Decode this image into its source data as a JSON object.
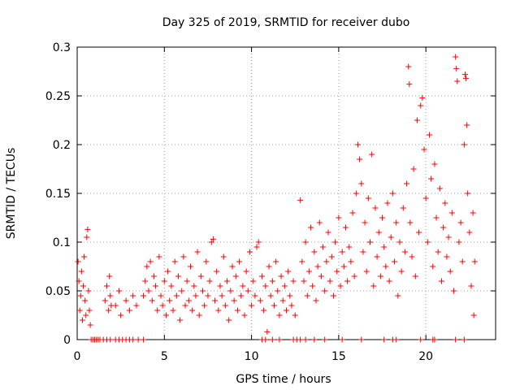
{
  "chart_data": {
    "type": "scatter",
    "title": "Day 325 of 2019, SRMTID for receiver dubo",
    "xlabel": "GPS time / hours",
    "ylabel": "SRMTID / TECUs",
    "xlim": [
      0,
      24
    ],
    "ylim": [
      0,
      0.3
    ],
    "xticks": [
      0,
      5,
      10,
      15,
      20
    ],
    "xtick_labels": [
      "0",
      "5",
      "10",
      "15",
      "20"
    ],
    "yticks": [
      0,
      0.05,
      0.1,
      0.15,
      0.2,
      0.25,
      0.3
    ],
    "ytick_labels": [
      "0",
      "0.05",
      "0.1",
      "0.15",
      "0.2",
      "0.25",
      "0.3"
    ],
    "grid": true,
    "marker": "+",
    "series": [
      {
        "name": "SRMTID",
        "color": "#ff0000",
        "points": [
          [
            0.05,
            0.08
          ],
          [
            0.1,
            0.06
          ],
          [
            0.15,
            0.03
          ],
          [
            0.2,
            0.045
          ],
          [
            0.25,
            0.07
          ],
          [
            0.3,
            0.02
          ],
          [
            0.35,
            0.055
          ],
          [
            0.4,
            0.085
          ],
          [
            0.45,
            0.04
          ],
          [
            0.5,
            0.025
          ],
          [
            0.55,
            0.105
          ],
          [
            0.6,
            0.113
          ],
          [
            0.65,
            0.05
          ],
          [
            0.7,
            0.03
          ],
          [
            0.75,
            0.015
          ],
          [
            0.8,
            0.0
          ],
          [
            0.9,
            0.0
          ],
          [
            1.0,
            0.0
          ],
          [
            1.1,
            0.0
          ],
          [
            1.2,
            0.0
          ],
          [
            1.3,
            0.0
          ],
          [
            1.5,
            0.0
          ],
          [
            1.7,
            0.0
          ],
          [
            1.9,
            0.0
          ],
          [
            1.6,
            0.04
          ],
          [
            1.7,
            0.055
          ],
          [
            1.8,
            0.03
          ],
          [
            1.85,
            0.065
          ],
          [
            1.9,
            0.045
          ],
          [
            1.95,
            0.035
          ],
          [
            2.2,
            0.0
          ],
          [
            2.4,
            0.0
          ],
          [
            2.6,
            0.0
          ],
          [
            2.8,
            0.0
          ],
          [
            3.0,
            0.0
          ],
          [
            3.2,
            0.0
          ],
          [
            3.5,
            0.0
          ],
          [
            3.8,
            0.0
          ],
          [
            2.2,
            0.035
          ],
          [
            2.4,
            0.05
          ],
          [
            2.5,
            0.025
          ],
          [
            2.8,
            0.04
          ],
          [
            3.0,
            0.03
          ],
          [
            3.2,
            0.045
          ],
          [
            3.4,
            0.035
          ],
          [
            3.8,
            0.045
          ],
          [
            3.9,
            0.06
          ],
          [
            4.0,
            0.075
          ],
          [
            4.1,
            0.05
          ],
          [
            4.2,
            0.08
          ],
          [
            4.3,
            0.04
          ],
          [
            4.4,
            0.065
          ],
          [
            4.5,
            0.055
          ],
          [
            4.6,
            0.03
          ],
          [
            4.7,
            0.085
          ],
          [
            4.8,
            0.045
          ],
          [
            4.9,
            0.035
          ],
          [
            5.0,
            0.06
          ],
          [
            5.1,
            0.025
          ],
          [
            5.2,
            0.07
          ],
          [
            5.3,
            0.04
          ],
          [
            5.4,
            0.055
          ],
          [
            5.5,
            0.03
          ],
          [
            5.6,
            0.08
          ],
          [
            5.7,
            0.045
          ],
          [
            5.8,
            0.065
          ],
          [
            5.9,
            0.02
          ],
          [
            6.0,
            0.05
          ],
          [
            6.1,
            0.085
          ],
          [
            6.2,
            0.035
          ],
          [
            6.3,
            0.06
          ],
          [
            6.4,
            0.04
          ],
          [
            6.5,
            0.075
          ],
          [
            6.6,
            0.03
          ],
          [
            6.7,
            0.055
          ],
          [
            6.8,
            0.045
          ],
          [
            6.9,
            0.09
          ],
          [
            7.0,
            0.025
          ],
          [
            7.1,
            0.065
          ],
          [
            7.2,
            0.05
          ],
          [
            7.3,
            0.035
          ],
          [
            7.4,
            0.08
          ],
          [
            7.5,
            0.045
          ],
          [
            7.6,
            0.06
          ],
          [
            7.7,
            0.1
          ],
          [
            7.8,
            0.103
          ],
          [
            7.9,
            0.04
          ],
          [
            8.0,
            0.07
          ],
          [
            8.1,
            0.03
          ],
          [
            8.2,
            0.055
          ],
          [
            8.3,
            0.045
          ],
          [
            8.4,
            0.085
          ],
          [
            8.5,
            0.035
          ],
          [
            8.6,
            0.06
          ],
          [
            8.7,
            0.02
          ],
          [
            8.8,
            0.05
          ],
          [
            8.9,
            0.075
          ],
          [
            9.0,
            0.04
          ],
          [
            9.1,
            0.065
          ],
          [
            9.2,
            0.03
          ],
          [
            9.3,
            0.08
          ],
          [
            9.4,
            0.045
          ],
          [
            9.5,
            0.055
          ],
          [
            9.6,
            0.025
          ],
          [
            9.7,
            0.07
          ],
          [
            9.8,
            0.05
          ],
          [
            9.9,
            0.09
          ],
          [
            10.0,
            0.035
          ],
          [
            10.1,
            0.06
          ],
          [
            10.2,
            0.045
          ],
          [
            10.3,
            0.095
          ],
          [
            10.4,
            0.1
          ],
          [
            10.5,
            0.04
          ],
          [
            10.6,
            0.065
          ],
          [
            10.7,
            0.03
          ],
          [
            10.8,
            0.055
          ],
          [
            10.9,
            0.008
          ],
          [
            11.0,
            0.075
          ],
          [
            11.1,
            0.045
          ],
          [
            11.2,
            0.06
          ],
          [
            11.3,
            0.035
          ],
          [
            11.4,
            0.08
          ],
          [
            11.5,
            0.05
          ],
          [
            11.6,
            0.025
          ],
          [
            11.7,
            0.065
          ],
          [
            11.8,
            0.04
          ],
          [
            11.9,
            0.055
          ],
          [
            12.0,
            0.03
          ],
          [
            12.1,
            0.07
          ],
          [
            12.2,
            0.045
          ],
          [
            12.3,
            0.035
          ],
          [
            12.4,
            0.06
          ],
          [
            12.5,
            0.025
          ],
          [
            10.6,
            0.0
          ],
          [
            10.8,
            0.0
          ],
          [
            11.2,
            0.0
          ],
          [
            11.6,
            0.0
          ],
          [
            12.4,
            0.0
          ],
          [
            12.6,
            0.0
          ],
          [
            12.8,
            0.0
          ],
          [
            13.1,
            0.0
          ],
          [
            13.6,
            0.0
          ],
          [
            14.2,
            0.0
          ],
          [
            15.2,
            0.0
          ],
          [
            16.3,
            0.0
          ],
          [
            17.6,
            0.0
          ],
          [
            18.1,
            0.0
          ],
          [
            18.3,
            0.0
          ],
          [
            19.7,
            0.0
          ],
          [
            20.4,
            0.0
          ],
          [
            20.5,
            0.0
          ],
          [
            21.7,
            0.0
          ],
          [
            22.2,
            0.0
          ],
          [
            12.8,
            0.143
          ],
          [
            12.9,
            0.08
          ],
          [
            13.0,
            0.06
          ],
          [
            13.1,
            0.1
          ],
          [
            13.2,
            0.045
          ],
          [
            13.3,
            0.07
          ],
          [
            13.4,
            0.115
          ],
          [
            13.5,
            0.055
          ],
          [
            13.6,
            0.09
          ],
          [
            13.7,
            0.04
          ],
          [
            13.8,
            0.075
          ],
          [
            13.9,
            0.12
          ],
          [
            14.0,
            0.065
          ],
          [
            14.1,
            0.095
          ],
          [
            14.2,
            0.05
          ],
          [
            14.3,
            0.08
          ],
          [
            14.4,
            0.11
          ],
          [
            14.5,
            0.06
          ],
          [
            14.6,
            0.085
          ],
          [
            14.7,
            0.045
          ],
          [
            14.8,
            0.1
          ],
          [
            14.9,
            0.07
          ],
          [
            15.0,
            0.125
          ],
          [
            15.1,
            0.055
          ],
          [
            15.2,
            0.09
          ],
          [
            15.3,
            0.075
          ],
          [
            15.4,
            0.115
          ],
          [
            15.5,
            0.06
          ],
          [
            15.6,
            0.095
          ],
          [
            15.7,
            0.08
          ],
          [
            15.8,
            0.13
          ],
          [
            15.9,
            0.065
          ],
          [
            16.0,
            0.15
          ],
          [
            16.1,
            0.2
          ],
          [
            16.2,
            0.185
          ],
          [
            16.3,
            0.16
          ],
          [
            16.4,
            0.09
          ],
          [
            16.5,
            0.12
          ],
          [
            16.6,
            0.07
          ],
          [
            16.7,
            0.145
          ],
          [
            16.8,
            0.1
          ],
          [
            16.9,
            0.19
          ],
          [
            17.0,
            0.055
          ],
          [
            17.1,
            0.135
          ],
          [
            17.2,
            0.085
          ],
          [
            17.3,
            0.11
          ],
          [
            17.4,
            0.065
          ],
          [
            17.5,
            0.125
          ],
          [
            17.6,
            0.095
          ],
          [
            17.7,
            0.075
          ],
          [
            17.8,
            0.14
          ],
          [
            17.9,
            0.06
          ],
          [
            18.0,
            0.105
          ],
          [
            18.1,
            0.15
          ],
          [
            18.2,
            0.08
          ],
          [
            18.3,
            0.12
          ],
          [
            18.4,
            0.045
          ],
          [
            18.5,
            0.1
          ],
          [
            18.6,
            0.07
          ],
          [
            18.7,
            0.135
          ],
          [
            18.8,
            0.09
          ],
          [
            18.9,
            0.16
          ],
          [
            19.0,
            0.28
          ],
          [
            19.05,
            0.262
          ],
          [
            19.1,
            0.12
          ],
          [
            19.2,
            0.085
          ],
          [
            19.3,
            0.175
          ],
          [
            19.4,
            0.065
          ],
          [
            19.5,
            0.225
          ],
          [
            19.6,
            0.11
          ],
          [
            19.7,
            0.24
          ],
          [
            19.8,
            0.248
          ],
          [
            19.9,
            0.195
          ],
          [
            20.0,
            0.145
          ],
          [
            20.1,
            0.1
          ],
          [
            20.2,
            0.21
          ],
          [
            20.3,
            0.165
          ],
          [
            20.4,
            0.075
          ],
          [
            20.5,
            0.18
          ],
          [
            20.6,
            0.125
          ],
          [
            20.7,
            0.09
          ],
          [
            20.8,
            0.155
          ],
          [
            20.9,
            0.06
          ],
          [
            21.0,
            0.115
          ],
          [
            21.1,
            0.14
          ],
          [
            21.2,
            0.085
          ],
          [
            21.3,
            0.105
          ],
          [
            21.4,
            0.07
          ],
          [
            21.5,
            0.13
          ],
          [
            21.6,
            0.05
          ],
          [
            21.7,
            0.29
          ],
          [
            21.75,
            0.278
          ],
          [
            21.8,
            0.265
          ],
          [
            21.9,
            0.1
          ],
          [
            22.0,
            0.12
          ],
          [
            22.1,
            0.08
          ],
          [
            22.2,
            0.2
          ],
          [
            22.25,
            0.272
          ],
          [
            22.3,
            0.268
          ],
          [
            22.35,
            0.22
          ],
          [
            22.4,
            0.15
          ],
          [
            22.5,
            0.11
          ],
          [
            22.6,
            0.055
          ],
          [
            22.7,
            0.13
          ],
          [
            22.75,
            0.025
          ],
          [
            22.8,
            0.08
          ]
        ]
      }
    ]
  }
}
